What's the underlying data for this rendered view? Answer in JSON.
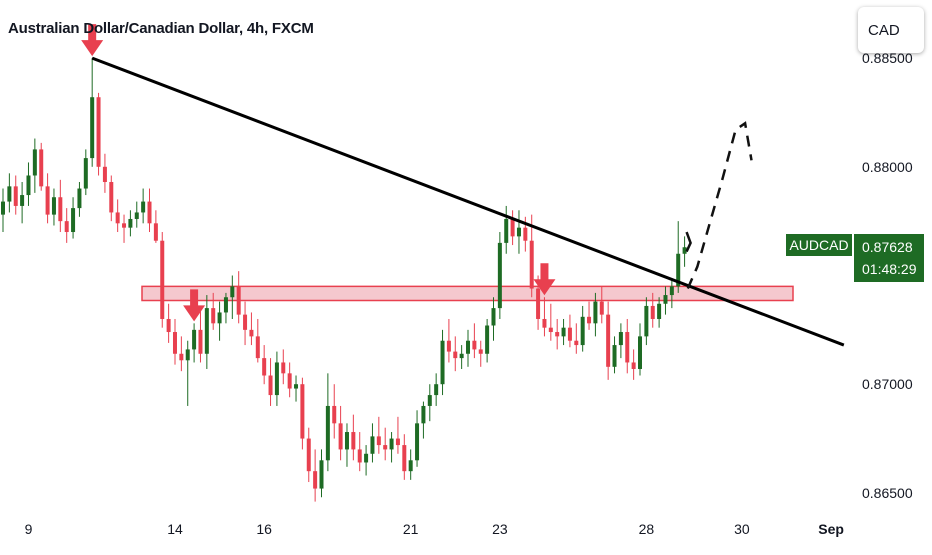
{
  "header": {
    "title": "Australian Dollar/Canadian Dollar, 4h, FXCM"
  },
  "currency_button": {
    "label": "CAD"
  },
  "symbol_label": {
    "name": "AUDCAD",
    "price": "0.87628",
    "countdown": "01:48:29"
  },
  "colors": {
    "up": "#1e6b24",
    "down": "#e8404f",
    "zone": "#f2b6bd",
    "zone_border": "#e8404f",
    "trendline": "#000000",
    "arrow": "#e8404f"
  },
  "chart_data": {
    "type": "candlestick",
    "symbol": "AUDCAD",
    "timeframe": "4h",
    "x_tick_labels": [
      "9",
      "14",
      "16",
      "21",
      "23",
      "28",
      "30",
      "Sep"
    ],
    "y_tick_labels": [
      "0.88500",
      "0.88000",
      "0.87000",
      "0.86500"
    ],
    "ylim": [
      0.8638,
      0.8862
    ],
    "last_price": 0.87628,
    "candles": [
      [
        0.8778,
        0.879,
        0.877,
        0.8784
      ],
      [
        0.8784,
        0.8797,
        0.8779,
        0.8791
      ],
      [
        0.8791,
        0.8796,
        0.8778,
        0.8782
      ],
      [
        0.8782,
        0.8793,
        0.8774,
        0.8787
      ],
      [
        0.8787,
        0.8802,
        0.8782,
        0.8796
      ],
      [
        0.8796,
        0.8813,
        0.8788,
        0.8808
      ],
      [
        0.8808,
        0.8811,
        0.8789,
        0.8791
      ],
      [
        0.8791,
        0.8797,
        0.8774,
        0.8778
      ],
      [
        0.8778,
        0.879,
        0.8773,
        0.8786
      ],
      [
        0.8786,
        0.8794,
        0.877,
        0.8775
      ],
      [
        0.8775,
        0.8781,
        0.8765,
        0.877
      ],
      [
        0.877,
        0.8786,
        0.8767,
        0.8781
      ],
      [
        0.8781,
        0.8793,
        0.8777,
        0.879
      ],
      [
        0.879,
        0.8808,
        0.8787,
        0.8804
      ],
      [
        0.8804,
        0.885,
        0.88,
        0.8832
      ],
      [
        0.8832,
        0.8834,
        0.8796,
        0.88
      ],
      [
        0.88,
        0.8806,
        0.8788,
        0.8793
      ],
      [
        0.8793,
        0.8796,
        0.8775,
        0.8779
      ],
      [
        0.8779,
        0.8785,
        0.877,
        0.8774
      ],
      [
        0.8774,
        0.8778,
        0.8765,
        0.8772
      ],
      [
        0.8772,
        0.878,
        0.8768,
        0.8776
      ],
      [
        0.8776,
        0.8784,
        0.8772,
        0.8779
      ],
      [
        0.8779,
        0.879,
        0.8774,
        0.8784
      ],
      [
        0.8784,
        0.879,
        0.877,
        0.8774
      ],
      [
        0.8774,
        0.878,
        0.8765,
        0.8766
      ],
      [
        0.8766,
        0.877,
        0.8726,
        0.873
      ],
      [
        0.873,
        0.8737,
        0.8719,
        0.8724
      ],
      [
        0.8724,
        0.873,
        0.8709,
        0.8714
      ],
      [
        0.8714,
        0.8722,
        0.8706,
        0.8711
      ],
      [
        0.8711,
        0.872,
        0.869,
        0.8716
      ],
      [
        0.8716,
        0.8728,
        0.871,
        0.8725
      ],
      [
        0.8725,
        0.8734,
        0.871,
        0.8714
      ],
      [
        0.8714,
        0.8741,
        0.8707,
        0.8735
      ],
      [
        0.8735,
        0.8742,
        0.8725,
        0.8728
      ],
      [
        0.8728,
        0.8738,
        0.872,
        0.8733
      ],
      [
        0.8733,
        0.8742,
        0.8728,
        0.874
      ],
      [
        0.874,
        0.875,
        0.873,
        0.8745
      ],
      [
        0.8745,
        0.8752,
        0.8728,
        0.8732
      ],
      [
        0.8732,
        0.8738,
        0.8718,
        0.8725
      ],
      [
        0.8725,
        0.8733,
        0.8718,
        0.8722
      ],
      [
        0.8722,
        0.873,
        0.871,
        0.8712
      ],
      [
        0.8712,
        0.8718,
        0.87,
        0.8704
      ],
      [
        0.8704,
        0.8712,
        0.869,
        0.8695
      ],
      [
        0.8695,
        0.8715,
        0.869,
        0.871
      ],
      [
        0.871,
        0.8716,
        0.87,
        0.8705
      ],
      [
        0.8705,
        0.871,
        0.8694,
        0.8698
      ],
      [
        0.8698,
        0.8704,
        0.8692,
        0.87
      ],
      [
        0.87,
        0.8703,
        0.867,
        0.8675
      ],
      [
        0.8675,
        0.868,
        0.8655,
        0.866
      ],
      [
        0.866,
        0.867,
        0.8646,
        0.8652
      ],
      [
        0.8652,
        0.867,
        0.8648,
        0.8665
      ],
      [
        0.8665,
        0.8705,
        0.866,
        0.869
      ],
      [
        0.869,
        0.87,
        0.8675,
        0.8682
      ],
      [
        0.8682,
        0.869,
        0.8665,
        0.867
      ],
      [
        0.867,
        0.8682,
        0.8662,
        0.8678
      ],
      [
        0.8678,
        0.8686,
        0.8665,
        0.867
      ],
      [
        0.867,
        0.8678,
        0.866,
        0.8664
      ],
      [
        0.8664,
        0.8672,
        0.8658,
        0.8668
      ],
      [
        0.8668,
        0.8682,
        0.8664,
        0.8676
      ],
      [
        0.8676,
        0.8685,
        0.8668,
        0.8672
      ],
      [
        0.8672,
        0.868,
        0.8665,
        0.867
      ],
      [
        0.867,
        0.8678,
        0.8664,
        0.8675
      ],
      [
        0.8675,
        0.8685,
        0.8668,
        0.8672
      ],
      [
        0.8672,
        0.8677,
        0.8656,
        0.866
      ],
      [
        0.866,
        0.867,
        0.8656,
        0.8665
      ],
      [
        0.8665,
        0.8688,
        0.8662,
        0.8682
      ],
      [
        0.8682,
        0.8692,
        0.8675,
        0.869
      ],
      [
        0.869,
        0.87,
        0.8683,
        0.8695
      ],
      [
        0.8695,
        0.8705,
        0.869,
        0.87
      ],
      [
        0.87,
        0.8725,
        0.8695,
        0.872
      ],
      [
        0.872,
        0.873,
        0.871,
        0.8715
      ],
      [
        0.8715,
        0.8722,
        0.8706,
        0.8712
      ],
      [
        0.8712,
        0.8718,
        0.8707,
        0.8714
      ],
      [
        0.8714,
        0.8725,
        0.8708,
        0.872
      ],
      [
        0.872,
        0.8728,
        0.8712,
        0.8716
      ],
      [
        0.8716,
        0.872,
        0.8708,
        0.8714
      ],
      [
        0.8714,
        0.873,
        0.871,
        0.8727
      ],
      [
        0.8727,
        0.874,
        0.872,
        0.8735
      ],
      [
        0.8735,
        0.877,
        0.873,
        0.8765
      ],
      [
        0.8765,
        0.8782,
        0.876,
        0.8776
      ],
      [
        0.8776,
        0.878,
        0.8764,
        0.8768
      ],
      [
        0.8768,
        0.878,
        0.876,
        0.8772
      ],
      [
        0.8772,
        0.8777,
        0.8761,
        0.8766
      ],
      [
        0.8766,
        0.8778,
        0.874,
        0.8744
      ],
      [
        0.8744,
        0.875,
        0.8725,
        0.873
      ],
      [
        0.873,
        0.874,
        0.8722,
        0.8726
      ],
      [
        0.8726,
        0.8737,
        0.872,
        0.8724
      ],
      [
        0.8724,
        0.873,
        0.8716,
        0.8722
      ],
      [
        0.8722,
        0.873,
        0.8718,
        0.8726
      ],
      [
        0.8726,
        0.8732,
        0.8717,
        0.872
      ],
      [
        0.872,
        0.8728,
        0.8714,
        0.8718
      ],
      [
        0.8718,
        0.8736,
        0.8715,
        0.8731
      ],
      [
        0.8731,
        0.8738,
        0.8725,
        0.8728
      ],
      [
        0.8728,
        0.8742,
        0.8722,
        0.8738
      ],
      [
        0.8738,
        0.8745,
        0.8728,
        0.8732
      ],
      [
        0.8732,
        0.8738,
        0.8702,
        0.8708
      ],
      [
        0.8708,
        0.8722,
        0.8705,
        0.8718
      ],
      [
        0.8718,
        0.8728,
        0.8712,
        0.8724
      ],
      [
        0.8724,
        0.873,
        0.8705,
        0.871
      ],
      [
        0.871,
        0.8716,
        0.8702,
        0.8707
      ],
      [
        0.8707,
        0.8728,
        0.8704,
        0.8722
      ],
      [
        0.8722,
        0.874,
        0.8718,
        0.8736
      ],
      [
        0.8736,
        0.8742,
        0.8726,
        0.873
      ],
      [
        0.873,
        0.874,
        0.8726,
        0.8737
      ],
      [
        0.8737,
        0.8745,
        0.8732,
        0.8741
      ],
      [
        0.8741,
        0.8748,
        0.8735,
        0.8745
      ],
      [
        0.8745,
        0.8775,
        0.8742,
        0.876
      ],
      [
        0.876,
        0.8768,
        0.8754,
        0.8763
      ]
    ],
    "horizontal_zone": {
      "from": 0.87385,
      "to": 0.8745
    },
    "trendline": {
      "from": {
        "bar": 14,
        "price": 0.885
      },
      "to": {
        "bar": 132,
        "price": 0.8718
      }
    },
    "projection": [
      {
        "bar": 107.5,
        "price": 0.8744
      },
      {
        "bar": 109,
        "price": 0.8754
      },
      {
        "bar": 113,
        "price": 0.8795
      },
      {
        "bar": 115,
        "price": 0.8817
      },
      {
        "bar": 116.5,
        "price": 0.882
      },
      {
        "bar": 117.5,
        "price": 0.8803
      }
    ],
    "markers": [
      {
        "bar": 14,
        "type": "down-arrow"
      },
      {
        "bar": 30,
        "type": "down-arrow"
      },
      {
        "bar": 85,
        "type": "down-arrow"
      }
    ]
  }
}
